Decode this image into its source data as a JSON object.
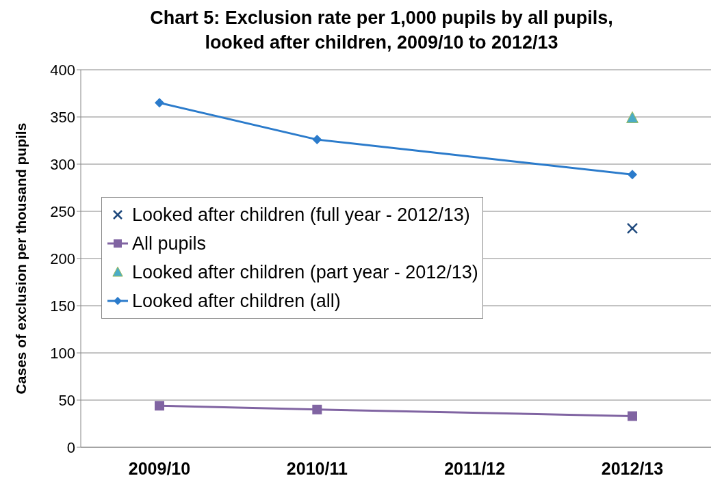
{
  "chart_data": {
    "type": "line",
    "title": "Chart 5: Exclusion rate per 1,000 pupils by all pupils,\nlooked after children, 2009/10 to 2012/13",
    "ylabel": "Cases of exclusion per thousand pupils",
    "categories": [
      "2009/10",
      "2010/11",
      "2011/12",
      "2012/13"
    ],
    "series": [
      {
        "name": "Looked after children (full year - 2012/13)",
        "type": "scatter",
        "marker": "cross",
        "color": "#1f497d",
        "x": [
          "2012/13"
        ],
        "values": [
          232
        ]
      },
      {
        "name": "All pupils",
        "type": "line",
        "marker": "square",
        "color": "#8064a2",
        "values": [
          44,
          40,
          null,
          33
        ]
      },
      {
        "name": "Looked after children (part year - 2012/13)",
        "type": "scatter",
        "marker": "triangle",
        "color": "#4bacc6",
        "x": [
          "2012/13"
        ],
        "values": [
          349
        ]
      },
      {
        "name": "Looked after children (all)",
        "type": "line",
        "marker": "diamond",
        "color": "#2b7bcb",
        "values": [
          365,
          326,
          null,
          289
        ]
      }
    ],
    "ylim": [
      0,
      400
    ],
    "yticks": [
      0,
      50,
      100,
      150,
      200,
      250,
      300,
      350,
      400
    ],
    "grid": "y",
    "legend": "left"
  }
}
